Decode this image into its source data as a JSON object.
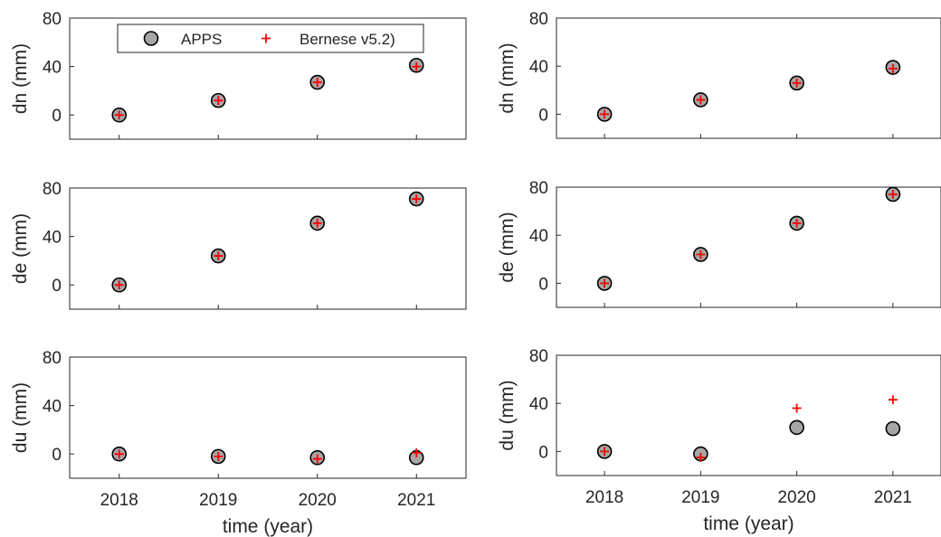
{
  "legend": {
    "entries": [
      {
        "name": "APPS",
        "marker": "circle"
      },
      {
        "name": "Bernese v5.2)",
        "marker": "plus"
      }
    ]
  },
  "colors": {
    "apps_fill": "#a6a6a6",
    "apps_edge": "#000000",
    "bernese": "#ff0000",
    "axes": "#262626"
  },
  "chart_data": [
    {
      "type": "scatter",
      "panel": "top-left",
      "ylabel": "dn (mm)",
      "xlabel": "",
      "ylim": [
        -20,
        80
      ],
      "yticks": [
        0,
        40,
        80
      ],
      "xlim": [
        2017.5,
        2021.5
      ],
      "xticks": [],
      "grid": false,
      "x": [
        2018,
        2019,
        2020,
        2021
      ],
      "series": [
        {
          "name": "APPS",
          "values": [
            0,
            12,
            27,
            41
          ]
        },
        {
          "name": "Bernese v5.2)",
          "values": [
            0,
            12,
            27,
            40
          ]
        }
      ]
    },
    {
      "type": "scatter",
      "panel": "top-right",
      "ylabel": "dn (mm)",
      "xlabel": "",
      "ylim": [
        -20,
        80
      ],
      "yticks": [
        0,
        40,
        80
      ],
      "xlim": [
        2017.5,
        2021.5
      ],
      "xticks": [],
      "grid": false,
      "x": [
        2018,
        2019,
        2020,
        2021
      ],
      "series": [
        {
          "name": "APPS",
          "values": [
            0,
            12,
            26,
            39
          ]
        },
        {
          "name": "Bernese v5.2)",
          "values": [
            0,
            12,
            26,
            38
          ]
        }
      ]
    },
    {
      "type": "scatter",
      "panel": "middle-left",
      "ylabel": "de (mm)",
      "xlabel": "",
      "ylim": [
        -20,
        80
      ],
      "yticks": [
        0,
        40,
        80
      ],
      "xlim": [
        2017.5,
        2021.5
      ],
      "xticks": [],
      "grid": false,
      "x": [
        2018,
        2019,
        2020,
        2021
      ],
      "series": [
        {
          "name": "APPS",
          "values": [
            0,
            24,
            51,
            71
          ]
        },
        {
          "name": "Bernese v5.2)",
          "values": [
            0,
            24,
            51,
            71
          ]
        }
      ]
    },
    {
      "type": "scatter",
      "panel": "middle-right",
      "ylabel": "de (mm)",
      "xlabel": "",
      "ylim": [
        -20,
        80
      ],
      "yticks": [
        0,
        40,
        80
      ],
      "xlim": [
        2017.5,
        2021.5
      ],
      "xticks": [],
      "grid": false,
      "x": [
        2018,
        2019,
        2020,
        2021
      ],
      "series": [
        {
          "name": "APPS",
          "values": [
            0,
            24,
            50,
            74
          ]
        },
        {
          "name": "Bernese v5.2)",
          "values": [
            0,
            24,
            50,
            74
          ]
        }
      ]
    },
    {
      "type": "scatter",
      "panel": "bottom-left",
      "ylabel": "du (mm)",
      "xlabel": "time (year)",
      "ylim": [
        -20,
        80
      ],
      "yticks": [
        0,
        40,
        80
      ],
      "xlim": [
        2017.5,
        2021.5
      ],
      "xticks": [
        2018,
        2019,
        2020,
        2021
      ],
      "grid": false,
      "x": [
        2018,
        2019,
        2020,
        2021
      ],
      "series": [
        {
          "name": "APPS",
          "values": [
            0,
            -2,
            -3,
            -3
          ]
        },
        {
          "name": "Bernese v5.2)",
          "values": [
            0,
            -2,
            -4,
            1
          ]
        }
      ]
    },
    {
      "type": "scatter",
      "panel": "bottom-right",
      "ylabel": "du (mm)",
      "xlabel": "time (year)",
      "ylim": [
        -20,
        80
      ],
      "yticks": [
        0,
        40,
        80
      ],
      "xlim": [
        2017.5,
        2021.5
      ],
      "xticks": [
        2018,
        2019,
        2020,
        2021
      ],
      "grid": false,
      "x": [
        2018,
        2019,
        2020,
        2021
      ],
      "series": [
        {
          "name": "APPS",
          "values": [
            0,
            -2,
            20,
            19
          ]
        },
        {
          "name": "Bernese v5.2)",
          "values": [
            0,
            -5,
            36,
            43
          ]
        }
      ]
    }
  ]
}
